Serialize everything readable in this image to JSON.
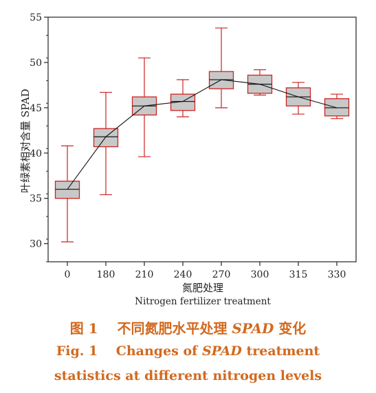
{
  "chart_data": {
    "type": "box",
    "categories": [
      "0",
      "180",
      "210",
      "240",
      "270",
      "300",
      "315",
      "330"
    ],
    "boxes": [
      {
        "min": 30.2,
        "q1": 35.0,
        "median": 36.0,
        "q3": 36.9,
        "max": 40.8
      },
      {
        "min": 35.4,
        "q1": 40.7,
        "median": 41.8,
        "q3": 42.7,
        "max": 46.7
      },
      {
        "min": 39.6,
        "q1": 44.2,
        "median": 45.2,
        "q3": 46.2,
        "max": 50.5
      },
      {
        "min": 44.0,
        "q1": 44.7,
        "median": 45.7,
        "q3": 46.5,
        "max": 48.1
      },
      {
        "min": 45.0,
        "q1": 47.1,
        "median": 48.1,
        "q3": 49.0,
        "max": 53.8
      },
      {
        "min": 46.4,
        "q1": 46.6,
        "median": 47.6,
        "q3": 48.6,
        "max": 49.2
      },
      {
        "min": 44.3,
        "q1": 45.2,
        "median": 46.2,
        "q3": 47.2,
        "max": 47.8
      },
      {
        "min": 43.8,
        "q1": 44.1,
        "median": 45.0,
        "q3": 46.0,
        "max": 46.5
      }
    ],
    "ylabel": "叶绿素相对含量 SPAD",
    "xlabel_cn": "氮肥处理",
    "xlabel_en": "Nitrogen fertilizer treatment",
    "ylim": [
      28,
      55
    ],
    "yticks": [
      30,
      35,
      40,
      45,
      50,
      55
    ],
    "mean_line": true,
    "box_fill": "#c8c8c8",
    "box_edge": "#cc2222",
    "line_color": "#111111"
  },
  "caption": {
    "cn_prefix": "图 1",
    "cn_main": "不同氮肥水平处理",
    "cn_italic": "SPAD",
    "cn_suffix": "变化",
    "en1_prefix": "Fig. 1",
    "en1_main": "Changes of",
    "en1_italic": "SPAD",
    "en1_suffix": "treatment",
    "en2": "statistics at different nitrogen levels"
  }
}
